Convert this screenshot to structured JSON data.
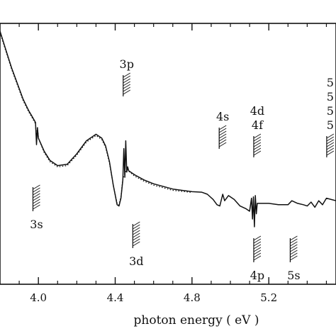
{
  "chart_data": {
    "type": "line",
    "title": "",
    "xlabel": "photon energy  ( eV )",
    "ylabel": "",
    "xlim": [
      3.8,
      5.55
    ],
    "ylim": [
      0,
      1
    ],
    "grid": false,
    "x_ticks": [
      {
        "value": 4.0,
        "label": "4.0"
      },
      {
        "value": 4.4,
        "label": "4.4"
      },
      {
        "value": 4.8,
        "label": "4.8"
      },
      {
        "value": 5.2,
        "label": "5.2"
      }
    ],
    "x_minor_ticks": [
      3.9,
      4.1,
      4.2,
      4.3,
      4.5,
      4.6,
      4.7,
      4.9,
      5.0,
      5.1,
      5.3,
      5.4,
      5.5
    ],
    "series": [
      {
        "style": "solid",
        "x": [
          3.8,
          3.83,
          3.86,
          3.89,
          3.92,
          3.95,
          3.97,
          3.985,
          3.99,
          3.995,
          4.0,
          4.03,
          4.06,
          4.1,
          4.15,
          4.2,
          4.25,
          4.3,
          4.33,
          4.35,
          4.37,
          4.39,
          4.41,
          4.42,
          4.43,
          4.44,
          4.445,
          4.45,
          4.455,
          4.46,
          4.465,
          4.47,
          4.5,
          4.55,
          4.6,
          4.7,
          4.8,
          4.85,
          4.88,
          4.91,
          4.93,
          4.945,
          4.96,
          4.97,
          4.99,
          5.02,
          5.05,
          5.08,
          5.1,
          5.11,
          5.115,
          5.12,
          5.125,
          5.13,
          5.135,
          5.14,
          5.15,
          5.2,
          5.25,
          5.3,
          5.32,
          5.35,
          5.38,
          5.4,
          5.42,
          5.44,
          5.46,
          5.48,
          5.5,
          5.55
        ],
        "y": [
          0.97,
          0.9,
          0.83,
          0.77,
          0.71,
          0.665,
          0.64,
          0.62,
          0.535,
          0.6,
          0.56,
          0.51,
          0.475,
          0.455,
          0.46,
          0.5,
          0.55,
          0.575,
          0.56,
          0.53,
          0.47,
          0.38,
          0.305,
          0.3,
          0.33,
          0.4,
          0.52,
          0.41,
          0.55,
          0.43,
          0.45,
          0.435,
          0.42,
          0.4,
          0.385,
          0.365,
          0.355,
          0.353,
          0.345,
          0.325,
          0.305,
          0.3,
          0.345,
          0.32,
          0.34,
          0.325,
          0.3,
          0.29,
          0.28,
          0.33,
          0.25,
          0.335,
          0.22,
          0.34,
          0.27,
          0.31,
          0.31,
          0.31,
          0.305,
          0.305,
          0.32,
          0.31,
          0.305,
          0.3,
          0.315,
          0.295,
          0.32,
          0.305,
          0.33,
          0.32
        ]
      },
      {
        "style": "dotted",
        "x": [
          3.8,
          3.83,
          3.86,
          3.89,
          3.92,
          3.95,
          3.97,
          3.985,
          3.99,
          3.995,
          4.0,
          4.03,
          4.06,
          4.1,
          4.15,
          4.2,
          4.25,
          4.3,
          4.33,
          4.35,
          4.37,
          4.39,
          4.41,
          4.42,
          4.43,
          4.44,
          4.46,
          4.5,
          4.55,
          4.6,
          4.7,
          4.8
        ],
        "y": [
          0.965,
          0.895,
          0.825,
          0.765,
          0.705,
          0.66,
          0.635,
          0.615,
          0.55,
          0.605,
          0.56,
          0.505,
          0.47,
          0.45,
          0.455,
          0.495,
          0.545,
          0.57,
          0.555,
          0.525,
          0.465,
          0.38,
          0.31,
          0.305,
          0.335,
          0.405,
          0.44,
          0.415,
          0.395,
          0.38,
          0.36,
          0.352
        ]
      }
    ],
    "annotations": [
      {
        "label": "3p",
        "x": 4.46,
        "position": "above"
      },
      {
        "label": "3s",
        "x": 3.99,
        "position": "below"
      },
      {
        "label": "3d",
        "x": 4.51,
        "position": "below"
      },
      {
        "label": "4s",
        "x": 4.96,
        "position": "above"
      },
      {
        "label": "4d\n4f",
        "x": 5.14,
        "position": "above"
      },
      {
        "label": "4p",
        "x": 5.14,
        "position": "below"
      },
      {
        "label": "5s",
        "x": 5.33,
        "position": "below"
      },
      {
        "label": "5\n5\n5\n5",
        "x": 5.52,
        "position": "above"
      }
    ]
  }
}
